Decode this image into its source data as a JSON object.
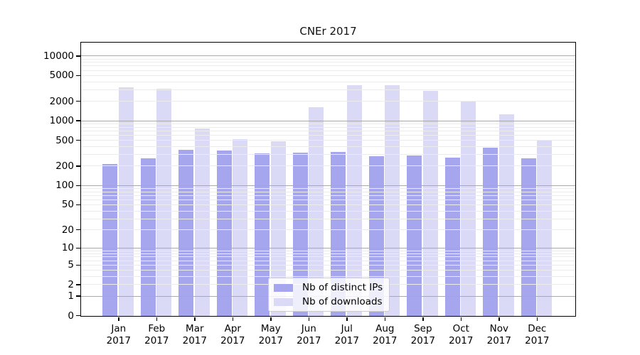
{
  "title": "CNEr 2017",
  "chart_data": {
    "type": "bar",
    "title": "CNEr 2017",
    "categories": [
      "Jan",
      "Feb",
      "Mar",
      "Apr",
      "May",
      "Jun",
      "Jul",
      "Aug",
      "Sep",
      "Oct",
      "Nov",
      "Dec"
    ],
    "category_year": "2017",
    "series": [
      {
        "name": "Nb of distinct IPs",
        "color": "#a6a6ef",
        "values": [
          220,
          270,
          358,
          352,
          318,
          327,
          335,
          286,
          296,
          274,
          390,
          267
        ]
      },
      {
        "name": "Nb of downloads",
        "color": "#dadaf7",
        "values": [
          3300,
          3170,
          770,
          527,
          493,
          1630,
          3560,
          3560,
          2960,
          2030,
          1280,
          522
        ]
      }
    ],
    "xlabel": "",
    "ylabel": "",
    "yscale": "log1p",
    "ylim": [
      0,
      16000
    ],
    "y_tick_values": [
      0,
      1,
      2,
      5,
      10,
      20,
      50,
      100,
      200,
      500,
      1000,
      2000,
      5000,
      10000
    ],
    "y_tick_labels": [
      "0",
      "1",
      "2",
      "5",
      "10",
      "20",
      "50",
      "100",
      "200",
      "500",
      "1000",
      "2000",
      "5000",
      "10000"
    ],
    "grid": {
      "major": [
        1,
        10,
        100,
        1000,
        10000
      ],
      "minor": [
        2,
        3,
        4,
        5,
        6,
        7,
        8,
        9,
        20,
        30,
        40,
        50,
        60,
        70,
        80,
        90,
        200,
        300,
        400,
        500,
        600,
        700,
        800,
        900,
        2000,
        3000,
        4000,
        5000,
        6000,
        7000,
        8000,
        9000
      ]
    },
    "legend": {
      "position": "lower center",
      "items": [
        "Nb of distinct IPs",
        "Nb of downloads"
      ]
    },
    "colors": {
      "axis": "#000000",
      "major_grid": "#a9a9a9",
      "minor_grid": "#ececec",
      "background": "#ffffff",
      "bar_distinct_ips": "#a6a6ef",
      "bar_downloads": "#dadaf7"
    }
  }
}
